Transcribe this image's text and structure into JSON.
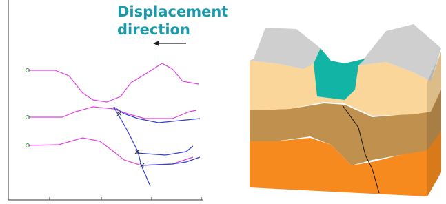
{
  "annotation": {
    "line1": "Displacement",
    "line2": "direction"
  }
}
